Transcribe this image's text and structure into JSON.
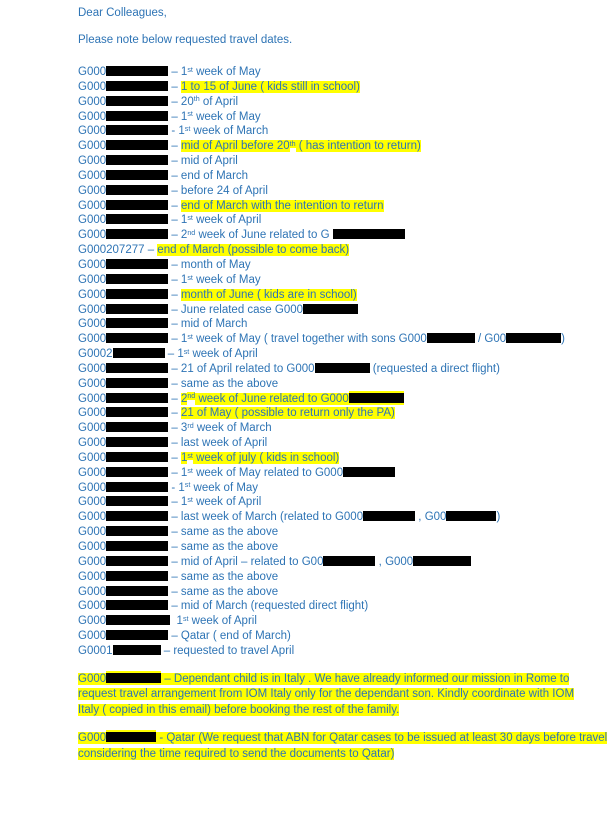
{
  "document": {
    "greeting": "Dear Colleagues,",
    "intro": "Please note below requested travel dates.",
    "colors": {
      "text": "#2E74B5",
      "highlight": "#FFFF00",
      "redaction": "#000000",
      "background": "#FFFFFF"
    },
    "entries": [
      {
        "segments": [
          {
            "text": "G000"
          },
          {
            "redact": 62
          },
          {
            "text": " – 1"
          },
          {
            "text": "st",
            "sup": true
          },
          {
            "text": " week of May"
          }
        ]
      },
      {
        "segments": [
          {
            "text": "G000"
          },
          {
            "redact": 62
          },
          {
            "text": " – "
          },
          {
            "text": "1 to 15 of June ( kids still in school)",
            "hl": true
          }
        ]
      },
      {
        "segments": [
          {
            "text": "G000"
          },
          {
            "redact": 62
          },
          {
            "text": " – 20"
          },
          {
            "text": "th",
            "sup": true
          },
          {
            "text": " of April"
          }
        ]
      },
      {
        "segments": [
          {
            "text": "G000"
          },
          {
            "redact": 62
          },
          {
            "text": " – 1"
          },
          {
            "text": "st",
            "sup": true
          },
          {
            "text": " week of May"
          }
        ]
      },
      {
        "segments": [
          {
            "text": "G000"
          },
          {
            "redact": 62
          },
          {
            "text": " - 1"
          },
          {
            "text": "st",
            "sup": true
          },
          {
            "text": " week of March"
          }
        ]
      },
      {
        "segments": [
          {
            "text": "G000"
          },
          {
            "redact": 62
          },
          {
            "text": " – "
          },
          {
            "text": "mid of April before 20",
            "hl": true
          },
          {
            "text": "th",
            "sup": true,
            "hl": true
          },
          {
            "text": " ( has intention to return)",
            "hl": true
          }
        ]
      },
      {
        "segments": [
          {
            "text": "G000"
          },
          {
            "redact": 62
          },
          {
            "text": " – mid of April"
          }
        ]
      },
      {
        "segments": [
          {
            "text": "G000"
          },
          {
            "redact": 62
          },
          {
            "text": " – end of March"
          }
        ]
      },
      {
        "segments": [
          {
            "text": "G000"
          },
          {
            "redact": 62
          },
          {
            "text": " – before 24 of April"
          }
        ]
      },
      {
        "segments": [
          {
            "text": "G000"
          },
          {
            "redact": 62
          },
          {
            "text": " – "
          },
          {
            "text": "end of March with the intention to return",
            "hl": true
          }
        ]
      },
      {
        "segments": [
          {
            "text": "G000"
          },
          {
            "redact": 62
          },
          {
            "text": " – 1"
          },
          {
            "text": "st",
            "sup": true
          },
          {
            "text": " week of April"
          }
        ]
      },
      {
        "segments": [
          {
            "text": "G000"
          },
          {
            "redact": 62
          },
          {
            "text": " – 2"
          },
          {
            "text": "nd",
            "sup": true
          },
          {
            "text": " week of June related to G "
          },
          {
            "redact": 72
          }
        ]
      },
      {
        "segments": [
          {
            "text": "G000207277 – "
          },
          {
            "text": "end of March (possible to come back)",
            "hl": true
          }
        ]
      },
      {
        "segments": [
          {
            "text": "G000"
          },
          {
            "redact": 62
          },
          {
            "text": " – month of May"
          }
        ]
      },
      {
        "segments": [
          {
            "text": "G000"
          },
          {
            "redact": 62
          },
          {
            "text": " – 1"
          },
          {
            "text": "st",
            "sup": true
          },
          {
            "text": " week of May"
          }
        ]
      },
      {
        "segments": [
          {
            "text": "G000"
          },
          {
            "redact": 62
          },
          {
            "text": " – "
          },
          {
            "text": "month of June ( kids are in school)",
            "hl": true
          }
        ]
      },
      {
        "segments": [
          {
            "text": "G000"
          },
          {
            "redact": 62
          },
          {
            "text": " – June related case G000"
          },
          {
            "redact": 55
          }
        ]
      },
      {
        "segments": [
          {
            "text": "G000"
          },
          {
            "redact": 62
          },
          {
            "text": " – mid of March"
          }
        ]
      },
      {
        "segments": [
          {
            "text": "G000"
          },
          {
            "redact": 62
          },
          {
            "text": " – 1"
          },
          {
            "text": "st",
            "sup": true
          },
          {
            "text": " week of May ( travel together with sons G000"
          },
          {
            "redact": 48
          },
          {
            "text": " / G00"
          },
          {
            "redact": 55
          },
          {
            "text": ")"
          }
        ]
      },
      {
        "segments": [
          {
            "text": "G0002"
          },
          {
            "redact": 52
          },
          {
            "text": " – 1"
          },
          {
            "text": "st",
            "sup": true
          },
          {
            "text": " week of April"
          }
        ]
      },
      {
        "segments": [
          {
            "text": "G000"
          },
          {
            "redact": 62
          },
          {
            "text": " – 21 of April related to G000"
          },
          {
            "redact": 55
          },
          {
            "text": " (requested a direct flight)"
          }
        ]
      },
      {
        "segments": [
          {
            "text": "G000"
          },
          {
            "redact": 62
          },
          {
            "text": " – same as the above"
          }
        ]
      },
      {
        "segments": [
          {
            "text": "G000"
          },
          {
            "redact": 62
          },
          {
            "text": " – "
          },
          {
            "text": "2",
            "hl": true
          },
          {
            "text": "nd",
            "sup": true,
            "hl": true
          },
          {
            "text": " week of June related to G000",
            "hl": true
          },
          {
            "redact": 55,
            "hl": true
          }
        ]
      },
      {
        "segments": [
          {
            "text": "G000"
          },
          {
            "redact": 62
          },
          {
            "text": " – "
          },
          {
            "text": "21 of May ( possible to return only the PA)",
            "hl": true
          }
        ]
      },
      {
        "segments": [
          {
            "text": "G000"
          },
          {
            "redact": 62
          },
          {
            "text": " – 3"
          },
          {
            "text": "rd",
            "sup": true
          },
          {
            "text": " week of March"
          }
        ]
      },
      {
        "segments": [
          {
            "text": "G000"
          },
          {
            "redact": 62
          },
          {
            "text": " – last week of April"
          }
        ]
      },
      {
        "segments": [
          {
            "text": "G000"
          },
          {
            "redact": 62
          },
          {
            "text": " – "
          },
          {
            "text": "1",
            "hl": true
          },
          {
            "text": "st",
            "sup": true,
            "hl": true
          },
          {
            "text": " week of july ( kids in school)",
            "hl": true
          }
        ]
      },
      {
        "segments": [
          {
            "text": "G000"
          },
          {
            "redact": 62
          },
          {
            "text": " – 1"
          },
          {
            "text": "st",
            "sup": true
          },
          {
            "text": " week of May related to G000"
          },
          {
            "redact": 52
          }
        ]
      },
      {
        "segments": [
          {
            "text": "G000"
          },
          {
            "redact": 62
          },
          {
            "text": " - 1"
          },
          {
            "text": "st",
            "sup": true
          },
          {
            "text": " week of May"
          }
        ]
      },
      {
        "segments": [
          {
            "text": "G000"
          },
          {
            "redact": 62
          },
          {
            "text": " – 1"
          },
          {
            "text": "st",
            "sup": true
          },
          {
            "text": " week of April"
          }
        ]
      },
      {
        "segments": [
          {
            "text": "G000"
          },
          {
            "redact": 62
          },
          {
            "text": " – last week of March (related to G000"
          },
          {
            "redact": 52
          },
          {
            "text": " , G00"
          },
          {
            "redact": 50
          },
          {
            "text": ")"
          }
        ]
      },
      {
        "segments": [
          {
            "text": "G000"
          },
          {
            "redact": 62
          },
          {
            "text": " – same as the above"
          }
        ]
      },
      {
        "segments": [
          {
            "text": "G000"
          },
          {
            "redact": 62
          },
          {
            "text": " – same as the above"
          }
        ]
      },
      {
        "segments": [
          {
            "text": "G000"
          },
          {
            "redact": 62
          },
          {
            "text": " – mid of April – related to G00"
          },
          {
            "redact": 52
          },
          {
            "text": " , G000"
          },
          {
            "redact": 58
          }
        ]
      },
      {
        "segments": [
          {
            "text": "G000"
          },
          {
            "redact": 62
          },
          {
            "text": " – same as the above"
          }
        ]
      },
      {
        "segments": [
          {
            "text": "G000"
          },
          {
            "redact": 62
          },
          {
            "text": " – same as the above"
          }
        ]
      },
      {
        "segments": [
          {
            "text": "G000"
          },
          {
            "redact": 62
          },
          {
            "text": " – mid of March (requested direct flight)"
          }
        ]
      },
      {
        "segments": [
          {
            "text": "G000"
          },
          {
            "redact": 64
          },
          {
            "text": "  1"
          },
          {
            "text": "st",
            "sup": true
          },
          {
            "text": " week of April"
          }
        ]
      },
      {
        "segments": [
          {
            "text": "G000"
          },
          {
            "redact": 62
          },
          {
            "text": " – Qatar ( end of March)"
          }
        ]
      },
      {
        "segments": [
          {
            "text": "G0001"
          },
          {
            "redact": 48
          },
          {
            "text": " – requested to travel April"
          }
        ]
      }
    ],
    "paragraphs": [
      {
        "lines": [
          {
            "segments": [
              {
                "text": "G000",
                "hl": true
              },
              {
                "redact": 55,
                "hl": true
              },
              {
                "text": " – Dependant child is in Italy . We have already informed our mission in Rome to",
                "hl": true
              }
            ]
          },
          {
            "segments": [
              {
                "text": "request travel arrangement from IOM Italy only for the dependant son. Kindly coordinate with IOM",
                "hl": true
              }
            ]
          },
          {
            "segments": [
              {
                "text": "Italy ( copied in this email) before booking the rest of the family.",
                "hl": true
              }
            ]
          }
        ]
      },
      {
        "lines": [
          {
            "segments": [
              {
                "text": "G000",
                "hl": true
              },
              {
                "redact": 50,
                "hl": true
              },
              {
                "text": " - Qatar (We request that ABN for Qatar cases to be issued at least 30 days before travel",
                "hl": true
              }
            ]
          },
          {
            "segments": [
              {
                "text": "considering the time required to send the documents to Qatar)",
                "hl": true
              }
            ]
          }
        ]
      }
    ]
  }
}
